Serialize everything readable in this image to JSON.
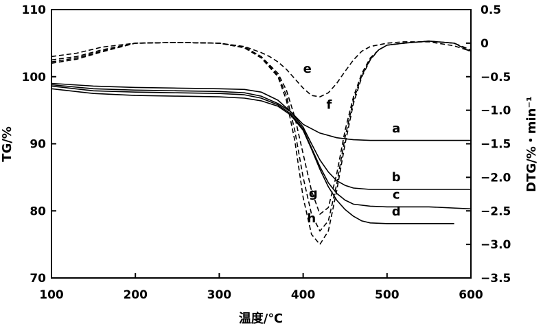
{
  "chart_data": {
    "type": "line",
    "xlabel": "温度/℃",
    "ylabel_left": "TG/%",
    "ylabel_right": "DTG/%・min⁻¹",
    "xlim": [
      100,
      600
    ],
    "ylim_left": [
      70,
      110
    ],
    "ylim_right": [
      -3.5,
      0.5
    ],
    "xticks": [
      100,
      200,
      300,
      400,
      500,
      600
    ],
    "yticks_left": [
      70,
      80,
      90,
      100,
      110
    ],
    "yticks_right": [
      -3.5,
      -3.0,
      -2.5,
      -2.0,
      -1.5,
      -1.0,
      -0.5,
      0,
      0.5
    ],
    "ytick_labels_right": [
      "−3.5",
      "−3.0",
      "−2.5",
      "−2.0",
      "−1.5",
      "−1.0",
      "−0.5",
      "0",
      "0.5"
    ],
    "grid": false,
    "series": [
      {
        "name": "a",
        "axis": "left",
        "style": "solid",
        "x": [
          100,
          150,
          200,
          250,
          300,
          330,
          350,
          370,
          385,
          400,
          420,
          440,
          460,
          480,
          500,
          550,
          600
        ],
        "y": [
          99.0,
          98.6,
          98.4,
          98.3,
          98.2,
          98.1,
          97.7,
          96.5,
          94.8,
          92.9,
          91.6,
          90.9,
          90.6,
          90.5,
          90.5,
          90.5,
          90.5
        ]
      },
      {
        "name": "b",
        "axis": "left",
        "style": "solid",
        "x": [
          100,
          150,
          200,
          250,
          300,
          330,
          350,
          370,
          385,
          400,
          410,
          420,
          430,
          440,
          450,
          460,
          480,
          500,
          550,
          600
        ],
        "y": [
          98.8,
          98.2,
          98.0,
          97.9,
          97.8,
          97.6,
          97.1,
          96.0,
          94.8,
          92.5,
          90.0,
          87.6,
          85.8,
          84.5,
          83.8,
          83.4,
          83.2,
          83.2,
          83.2,
          83.2
        ]
      },
      {
        "name": "c",
        "axis": "left",
        "style": "solid",
        "x": [
          100,
          150,
          200,
          250,
          300,
          330,
          350,
          370,
          385,
          400,
          410,
          420,
          430,
          440,
          450,
          460,
          480,
          500,
          550,
          600
        ],
        "y": [
          98.6,
          97.9,
          97.7,
          97.6,
          97.5,
          97.3,
          96.8,
          95.8,
          94.5,
          92.2,
          89.4,
          86.6,
          84.2,
          82.6,
          81.6,
          81.0,
          80.7,
          80.6,
          80.6,
          80.3
        ]
      },
      {
        "name": "d",
        "axis": "left",
        "style": "solid",
        "x": [
          100,
          150,
          200,
          250,
          300,
          330,
          350,
          370,
          385,
          400,
          410,
          420,
          430,
          440,
          450,
          460,
          470,
          480,
          500,
          550,
          580
        ],
        "y": [
          98.2,
          97.5,
          97.2,
          97.1,
          97.0,
          96.8,
          96.4,
          95.6,
          94.3,
          92.0,
          89.2,
          86.2,
          83.6,
          81.6,
          80.2,
          79.2,
          78.5,
          78.2,
          78.1,
          78.1,
          78.1
        ]
      },
      {
        "name": "e",
        "axis": "right",
        "style": "dashed",
        "x": [
          100,
          130,
          160,
          200,
          250,
          300,
          330,
          350,
          360,
          370,
          380,
          390,
          400,
          410,
          420,
          430,
          440,
          450,
          460,
          470,
          480,
          500,
          520,
          550,
          580,
          600
        ],
        "y": [
          -0.2,
          -0.15,
          -0.06,
          0.0,
          0.01,
          0.0,
          -0.05,
          -0.14,
          -0.2,
          -0.28,
          -0.39,
          -0.53,
          -0.67,
          -0.78,
          -0.8,
          -0.74,
          -0.6,
          -0.42,
          -0.25,
          -0.12,
          -0.05,
          0.0,
          0.02,
          0.02,
          -0.04,
          -0.12
        ]
      },
      {
        "name": "f",
        "axis": "right",
        "style": "dashed",
        "x": [
          100,
          130,
          160,
          200,
          250,
          300,
          330,
          350,
          370,
          380,
          390,
          400,
          410,
          420,
          430,
          440,
          450,
          460,
          470,
          480,
          490,
          500,
          520,
          550,
          580,
          600
        ],
        "y": [
          -0.25,
          -0.2,
          -0.1,
          0.0,
          0.01,
          0.0,
          -0.06,
          -0.2,
          -0.45,
          -0.7,
          -1.1,
          -1.65,
          -2.2,
          -2.55,
          -2.45,
          -1.95,
          -1.3,
          -0.8,
          -0.45,
          -0.22,
          -0.1,
          -0.03,
          0.0,
          0.03,
          0.0,
          -0.1
        ]
      },
      {
        "name": "g",
        "axis": "right",
        "style": "dashed",
        "x": [
          100,
          130,
          160,
          200,
          250,
          300,
          330,
          350,
          370,
          380,
          390,
          400,
          410,
          420,
          430,
          440,
          450,
          460,
          470,
          480,
          490,
          500,
          520,
          550,
          580,
          600
        ],
        "y": [
          -0.28,
          -0.22,
          -0.12,
          0.0,
          0.01,
          0.0,
          -0.06,
          -0.2,
          -0.48,
          -0.78,
          -1.3,
          -2.0,
          -2.55,
          -2.8,
          -2.65,
          -2.1,
          -1.4,
          -0.85,
          -0.48,
          -0.24,
          -0.1,
          -0.03,
          0.0,
          0.03,
          0.0,
          -0.12
        ]
      },
      {
        "name": "h",
        "axis": "right",
        "style": "dashed",
        "x": [
          100,
          130,
          160,
          200,
          250,
          300,
          330,
          350,
          370,
          380,
          390,
          400,
          410,
          420,
          430,
          440,
          450,
          460,
          470,
          480,
          490,
          500,
          520,
          550,
          580,
          600
        ],
        "y": [
          -0.3,
          -0.24,
          -0.13,
          0.0,
          0.01,
          0.0,
          -0.07,
          -0.22,
          -0.5,
          -0.85,
          -1.45,
          -2.3,
          -2.85,
          -3.0,
          -2.8,
          -2.2,
          -1.5,
          -0.9,
          -0.5,
          -0.25,
          -0.1,
          -0.03,
          0.0,
          0.03,
          0.0,
          -0.13
        ]
      }
    ],
    "curve_labels": [
      {
        "text": "a",
        "x": 511,
        "y": 91.7
      },
      {
        "text": "b",
        "x": 511,
        "y": 84.4
      },
      {
        "text": "c",
        "x": 511,
        "y": 81.8
      },
      {
        "text": "d",
        "x": 511,
        "y": 79.3
      },
      {
        "text": "e",
        "x": 405,
        "y": 100.6
      },
      {
        "text": "f",
        "x": 431,
        "y": 95.2
      },
      {
        "text": "g",
        "x": 412,
        "y": 82.0
      },
      {
        "text": "h",
        "x": 410,
        "y": 78.3
      }
    ]
  }
}
